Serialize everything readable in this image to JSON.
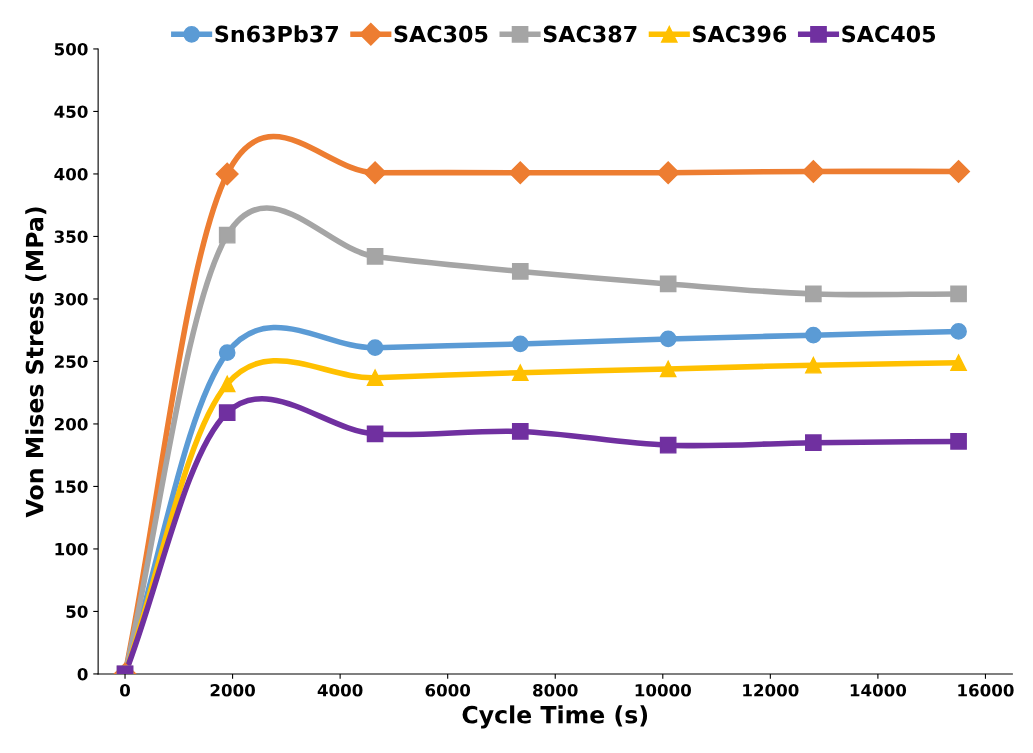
{
  "chart_data": {
    "type": "line",
    "xlabel": "Cycle Time (s)",
    "ylabel": "Von Mises Stress (MPa)",
    "x": [
      0,
      1900,
      4650,
      7350,
      10100,
      12800,
      15500
    ],
    "series": [
      {
        "name": "Sn63Pb37",
        "color": "#5b9bd5",
        "marker": "circle",
        "values": [
          0,
          257,
          261,
          264,
          268,
          271,
          274
        ]
      },
      {
        "name": "SAC305",
        "color": "#ed7d31",
        "marker": "diamond",
        "values": [
          0,
          400,
          401,
          401,
          401,
          402,
          402
        ]
      },
      {
        "name": "SAC387",
        "color": "#a5a5a5",
        "marker": "square",
        "values": [
          0,
          351,
          334,
          322,
          312,
          304,
          304
        ]
      },
      {
        "name": "SAC396",
        "color": "#ffc000",
        "marker": "triangle",
        "values": [
          0,
          232,
          237,
          241,
          244,
          247,
          249
        ]
      },
      {
        "name": "SAC405",
        "color": "#7030a0",
        "marker": "square",
        "values": [
          0,
          209,
          192,
          194,
          183,
          185,
          186
        ]
      }
    ],
    "xlim": [
      -500,
      16500
    ],
    "xticks": [
      0,
      2000,
      4000,
      6000,
      8000,
      10000,
      12000,
      14000,
      16000
    ],
    "ylim": [
      0,
      500
    ],
    "yticks": [
      0,
      50,
      100,
      150,
      200,
      250,
      300,
      350,
      400,
      450,
      500
    ],
    "grid": false,
    "legend": "top",
    "line_style": "solid"
  }
}
